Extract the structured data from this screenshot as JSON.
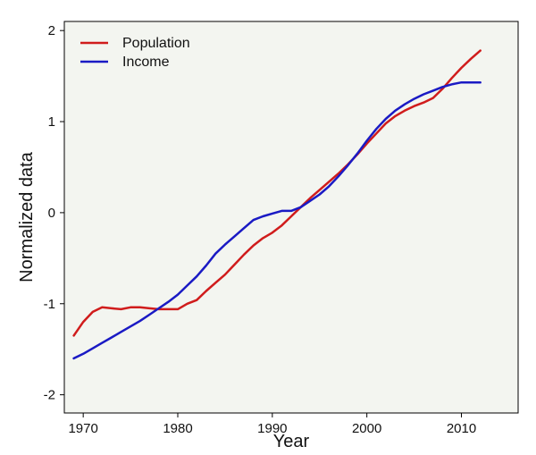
{
  "chart_data": {
    "type": "line",
    "xlabel": "Year",
    "ylabel": "Normalized data",
    "xlim": [
      1968,
      2016
    ],
    "ylim": [
      -2.2,
      2.1
    ],
    "xticks": [
      1970,
      1980,
      1990,
      2000,
      2010
    ],
    "yticks": [
      -2,
      -1,
      0,
      1,
      2
    ],
    "grid": false,
    "legend_position": "top-left",
    "background": "#f3f5f0",
    "series": [
      {
        "name": "Population",
        "color": "#d01c1c",
        "x": [
          1969,
          1970,
          1971,
          1972,
          1973,
          1974,
          1975,
          1976,
          1977,
          1978,
          1979,
          1980,
          1981,
          1982,
          1983,
          1984,
          1985,
          1986,
          1987,
          1988,
          1989,
          1990,
          1991,
          1992,
          1993,
          1994,
          1995,
          1996,
          1997,
          1998,
          1999,
          2000,
          2001,
          2002,
          2003,
          2004,
          2005,
          2006,
          2007,
          2008,
          2009,
          2010,
          2011,
          2012
        ],
        "values": [
          -1.35,
          -1.2,
          -1.09,
          -1.04,
          -1.05,
          -1.06,
          -1.04,
          -1.04,
          -1.05,
          -1.06,
          -1.06,
          -1.06,
          -1.0,
          -0.96,
          -0.86,
          -0.77,
          -0.68,
          -0.57,
          -0.46,
          -0.36,
          -0.28,
          -0.22,
          -0.14,
          -0.04,
          0.06,
          0.16,
          0.25,
          0.34,
          0.43,
          0.53,
          0.64,
          0.76,
          0.87,
          0.98,
          1.06,
          1.12,
          1.17,
          1.21,
          1.26,
          1.36,
          1.48,
          1.59,
          1.69,
          1.78
        ]
      },
      {
        "name": "Income",
        "color": "#1a1ac4",
        "x": [
          1969,
          1970,
          1971,
          1972,
          1973,
          1974,
          1975,
          1976,
          1977,
          1978,
          1979,
          1980,
          1981,
          1982,
          1983,
          1984,
          1985,
          1986,
          1987,
          1988,
          1989,
          1990,
          1991,
          1992,
          1993,
          1994,
          1995,
          1996,
          1997,
          1998,
          1999,
          2000,
          2001,
          2002,
          2003,
          2004,
          2005,
          2006,
          2007,
          2008,
          2009,
          2010,
          2011,
          2012
        ],
        "values": [
          -1.6,
          -1.55,
          -1.49,
          -1.43,
          -1.37,
          -1.31,
          -1.25,
          -1.19,
          -1.12,
          -1.05,
          -0.98,
          -0.9,
          -0.8,
          -0.7,
          -0.58,
          -0.45,
          -0.35,
          -0.26,
          -0.17,
          -0.08,
          -0.04,
          -0.01,
          0.02,
          0.02,
          0.06,
          0.13,
          0.2,
          0.29,
          0.4,
          0.52,
          0.65,
          0.79,
          0.92,
          1.03,
          1.12,
          1.19,
          1.25,
          1.3,
          1.34,
          1.38,
          1.41,
          1.43,
          1.43,
          1.43
        ]
      }
    ]
  }
}
